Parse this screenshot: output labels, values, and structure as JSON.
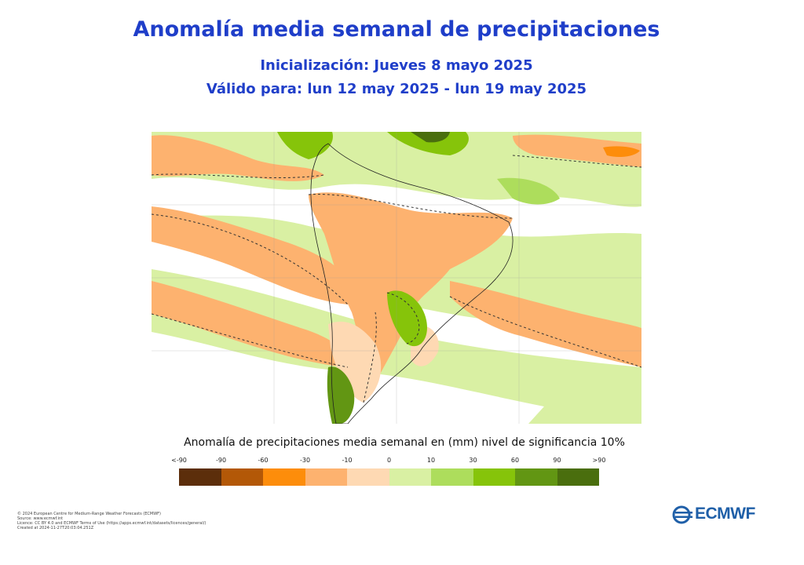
{
  "title": "Anomalía media semanal de precipitaciones",
  "init_line": "Inicialización: Jueves 8 mayo 2025",
  "valid_line": "Válido para: lun 12 may 2025 - lun 19 may 2025",
  "legend": {
    "title": "Anomalía de precipitaciones media semanal en (mm) nivel de significancia 10%",
    "labels": [
      "<-90",
      "-90",
      "-60",
      "-30",
      "-10",
      "0",
      "10",
      "30",
      "60",
      "90",
      ">90"
    ],
    "colors": [
      "#5c2e0b",
      "#b35807",
      "#fd8d0b",
      "#fdb26f",
      "#fed9b3",
      "#d9f0a3",
      "#addd5c",
      "#86c40a",
      "#629613",
      "#4a6e0e"
    ]
  },
  "colors": {
    "title": "#1f3ec9",
    "logo": "#1f5fa8"
  },
  "footer": [
    "© 2024 European Centre for Medium-Range Weather Forecasts (ECMWF)",
    "Source: www.ecmwf.int",
    "Licence: CC BY 4.0 and ECMWF Terms of Use (https://apps.ecmwf.int/datasets/licences/general/)",
    "Created at 2024-11-27T20:03:04.251Z"
  ],
  "logo_text": "ECMWF"
}
